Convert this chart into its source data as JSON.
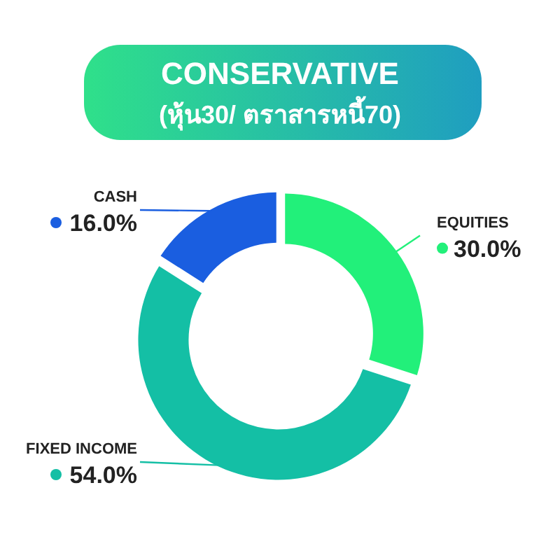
{
  "chart_data": {
    "type": "donut",
    "title": "CONSERVATIVE",
    "subtitle": "(หุ้น30/ ตราสารหนี้70)",
    "categories": [
      "EQUITIES",
      "FIXED INCOME",
      "CASH"
    ],
    "values": [
      30,
      54,
      16
    ],
    "colors": [
      "#22f07a",
      "#14bfa5",
      "#1a5ee0"
    ],
    "value_labels": [
      "30.0%",
      "54.0%",
      "16.0%"
    ]
  }
}
